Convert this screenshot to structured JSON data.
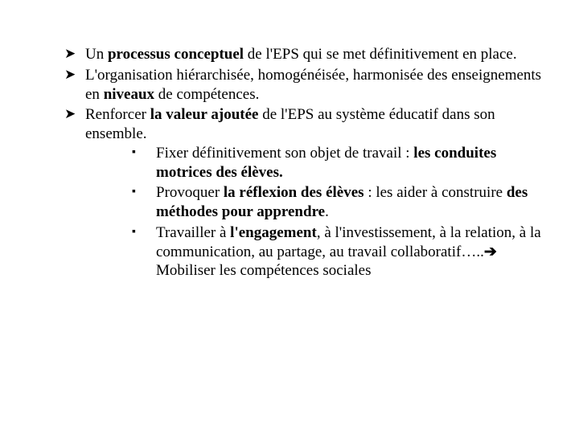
{
  "colors": {
    "background": "#ffffff",
    "text": "#000000"
  },
  "typography": {
    "font_family": "Times New Roman, serif",
    "font_size_pt": 19,
    "line_height": 1.25
  },
  "bullets": {
    "level1": [
      {
        "html": "Un <b>processus conceptuel</b> de l'EPS qui se met définitivement en place."
      },
      {
        "html": "L'organisation hiérarchisée, homogénéisée, harmonisée des enseignements en <b>niveaux</b> de compétences."
      },
      {
        "html": "Renforcer <b>la valeur ajoutée</b> de l'EPS au système éducatif dans son ensemble."
      }
    ],
    "level2": [
      {
        "html": "Fixer définitivement son objet de travail : <b>les conduites motrices des élèves.</b>"
      },
      {
        "html": "Provoquer <b>la réflexion des élèves</b> : les aider à construire <b>des méthodes pour apprendre</b>."
      },
      {
        "html": "Travailler à <b>l'engagement</b>, à l'investissement, à la relation, à la communication, au partage, au travail collaboratif…..<span class=\"arrow-right\">&#x2794;</span> Mobiliser les compétences sociales"
      }
    ]
  }
}
